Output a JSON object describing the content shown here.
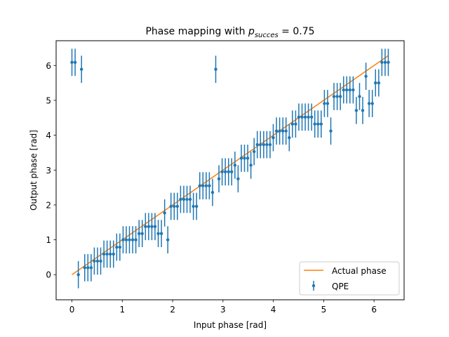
{
  "chart_data": {
    "type": "scatter",
    "title_main": "Phase mapping with ",
    "title_var": "p",
    "title_sub": "succes",
    "title_rest": " = 0.75",
    "xlabel": "Input phase [rad]",
    "ylabel": "Output phase [rad]",
    "xlim": [
      -0.314,
      6.597
    ],
    "ylim": [
      -0.72,
      6.71
    ],
    "xticks": [
      0,
      1,
      2,
      3,
      4,
      5,
      6
    ],
    "yticks": [
      0,
      1,
      2,
      3,
      4,
      5,
      6
    ],
    "grid": false,
    "legend_position": "lower right",
    "colors": {
      "qpe": "#1f77b4",
      "actual": "#ff7f0e"
    },
    "series": [
      {
        "name": "Actual phase",
        "kind": "line",
        "x": [
          0,
          6.283
        ],
        "y": [
          0,
          6.283
        ]
      },
      {
        "name": "QPE",
        "kind": "errorbar",
        "yerr": 0.39,
        "x": [
          0.0,
          0.063,
          0.127,
          0.19,
          0.254,
          0.317,
          0.381,
          0.444,
          0.508,
          0.571,
          0.635,
          0.698,
          0.762,
          0.825,
          0.889,
          0.952,
          1.016,
          1.079,
          1.142,
          1.206,
          1.269,
          1.333,
          1.396,
          1.46,
          1.523,
          1.587,
          1.65,
          1.714,
          1.777,
          1.841,
          1.904,
          1.967,
          2.031,
          2.094,
          2.158,
          2.221,
          2.285,
          2.348,
          2.412,
          2.475,
          2.539,
          2.602,
          2.666,
          2.729,
          2.793,
          2.856,
          2.919,
          2.983,
          3.046,
          3.11,
          3.173,
          3.237,
          3.3,
          3.364,
          3.427,
          3.491,
          3.554,
          3.618,
          3.681,
          3.744,
          3.808,
          3.871,
          3.935,
          3.998,
          4.062,
          4.125,
          4.189,
          4.252,
          4.316,
          4.379,
          4.443,
          4.506,
          4.57,
          4.633,
          4.696,
          4.76,
          4.823,
          4.887,
          4.95,
          5.014,
          5.077,
          5.141,
          5.204,
          5.268,
          5.331,
          5.395,
          5.458,
          5.521,
          5.585,
          5.648,
          5.712,
          5.775,
          5.839,
          5.902,
          5.966,
          6.029,
          6.093,
          6.156,
          6.22,
          6.283
        ],
        "y": [
          6.09,
          6.09,
          0.0,
          5.89,
          0.2,
          0.2,
          0.2,
          0.39,
          0.39,
          0.39,
          0.59,
          0.59,
          0.59,
          0.59,
          0.79,
          0.79,
          1.0,
          1.0,
          1.0,
          1.0,
          1.0,
          1.18,
          1.18,
          1.38,
          1.38,
          1.38,
          1.38,
          1.18,
          1.18,
          1.77,
          1.0,
          1.96,
          1.96,
          1.96,
          2.16,
          2.16,
          2.16,
          2.16,
          1.96,
          1.96,
          2.55,
          2.55,
          2.55,
          2.55,
          2.36,
          5.89,
          2.75,
          2.95,
          2.95,
          2.95,
          2.95,
          3.14,
          2.75,
          3.34,
          3.34,
          3.34,
          3.14,
          3.53,
          3.73,
          3.73,
          3.73,
          3.73,
          3.73,
          3.93,
          4.12,
          4.12,
          4.12,
          4.12,
          3.93,
          4.32,
          4.32,
          4.52,
          4.52,
          4.52,
          4.52,
          4.52,
          4.32,
          4.32,
          4.32,
          4.91,
          4.91,
          4.12,
          5.11,
          5.11,
          5.11,
          5.3,
          5.3,
          5.3,
          5.3,
          4.71,
          5.11,
          4.71,
          5.69,
          4.91,
          4.91,
          5.5,
          5.5,
          6.09,
          6.09,
          6.09
        ]
      }
    ]
  }
}
